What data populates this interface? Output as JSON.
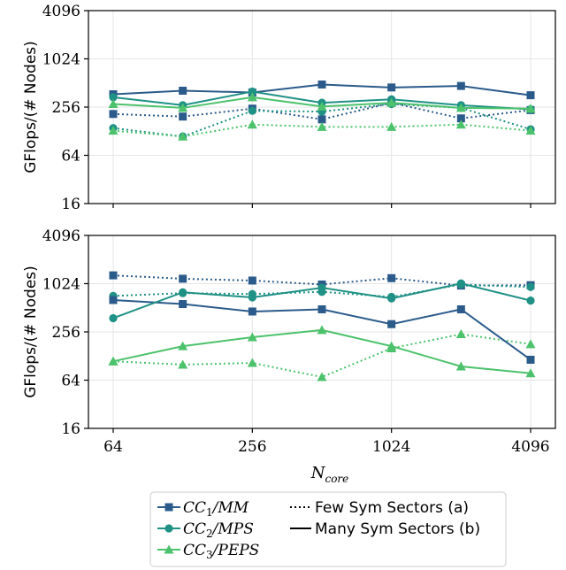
{
  "chart_data": {
    "type": "line",
    "colors": {
      "CC1": "#2b5b8b",
      "CC2": "#1f9185",
      "CC3": "#4cc26c",
      "grid": "#e6e6e6"
    },
    "x": [
      64,
      128,
      256,
      512,
      1024,
      2048,
      4096
    ],
    "x_ticks": [
      64,
      256,
      1024,
      4096
    ],
    "x_tick_labels": [
      "64",
      "256",
      "1024",
      "4096"
    ],
    "x_scale": "log2",
    "xlabel": "N_core",
    "xlabel_main": "N",
    "xlabel_sub": "core",
    "y_ticks": [
      16,
      64,
      256,
      1024,
      4096
    ],
    "y_tick_labels": [
      "16",
      "64",
      "256",
      "1024",
      "4096"
    ],
    "y_scale": "log2",
    "ylim": [
      16,
      4096
    ],
    "grid": true,
    "panels": [
      {
        "ylabel": "GFlops/(# Nodes)",
        "series": [
          {
            "key": "CC1",
            "style": "dotted",
            "marker": "square",
            "values": [
              210,
              195,
              245,
              180,
              290,
              185,
              235
            ]
          },
          {
            "key": "CC2",
            "style": "dotted",
            "marker": "circle",
            "values": [
              140,
              110,
              230,
              225,
              280,
              250,
              135
            ]
          },
          {
            "key": "CC3",
            "style": "dotted",
            "marker": "triangle",
            "values": [
              130,
              110,
              155,
              145,
              145,
              155,
              130
            ]
          },
          {
            "key": "CC1",
            "style": "solid",
            "marker": "square",
            "values": [
              370,
              410,
              390,
              490,
              450,
              470,
              360
            ]
          },
          {
            "key": "CC2",
            "style": "solid",
            "marker": "circle",
            "values": [
              340,
              270,
              400,
              290,
              320,
              270,
              240
            ]
          },
          {
            "key": "CC3",
            "style": "solid",
            "marker": "triangle",
            "values": [
              280,
              250,
              340,
              260,
              290,
              250,
              245
            ]
          }
        ]
      },
      {
        "ylabel": "GFlops/(# Nodes)",
        "series": [
          {
            "key": "CC1",
            "style": "dotted",
            "marker": "square",
            "values": [
              1300,
              1180,
              1120,
              1000,
              1200,
              970,
              980
            ]
          },
          {
            "key": "CC2",
            "style": "dotted",
            "marker": "circle",
            "values": [
              720,
              780,
              760,
              810,
              700,
              1000,
              930
            ]
          },
          {
            "key": "CC3",
            "style": "dotted",
            "marker": "triangle",
            "values": [
              110,
              100,
              105,
              70,
              160,
              240,
              180
            ]
          },
          {
            "key": "CC1",
            "style": "solid",
            "marker": "square",
            "values": [
              640,
              570,
              460,
              490,
              320,
              490,
              115
            ]
          },
          {
            "key": "CC2",
            "style": "solid",
            "marker": "circle",
            "values": [
              380,
              800,
              690,
              910,
              670,
              1030,
              630
            ]
          },
          {
            "key": "CC3",
            "style": "solid",
            "marker": "triangle",
            "values": [
              110,
              170,
              220,
              270,
              170,
              95,
              78
            ]
          }
        ]
      }
    ],
    "legend": {
      "position": "bottom-center",
      "entries": [
        {
          "key": "CC1",
          "main": "CC",
          "sub": "1",
          "rest": "/MM"
        },
        {
          "key": "CC2",
          "main": "CC",
          "sub": "2",
          "rest": "/MPS"
        },
        {
          "key": "CC3",
          "main": "CC",
          "sub": "3",
          "rest": "/PEPS"
        }
      ],
      "style_entries": [
        {
          "style": "dotted",
          "label": "Few Sym Sectors (a)"
        },
        {
          "style": "solid",
          "label": "Many Sym Sectors (b)"
        }
      ]
    }
  }
}
